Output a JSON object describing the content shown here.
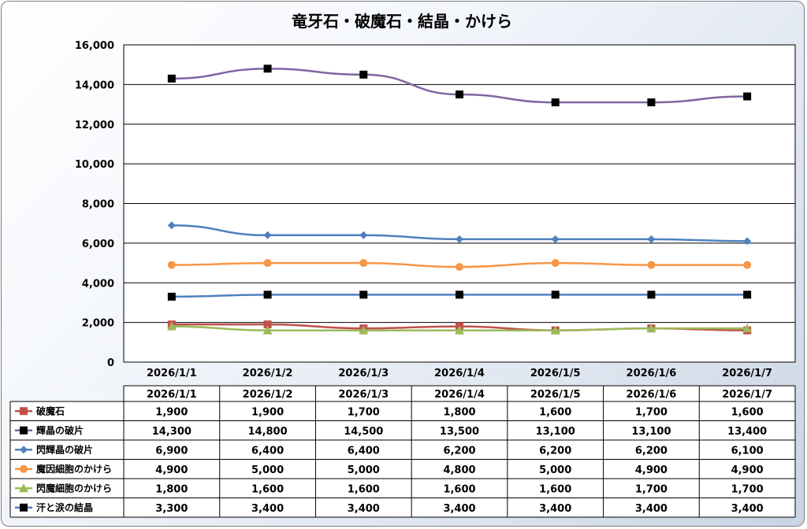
{
  "chart_data": {
    "type": "line",
    "title": "竜牙石・破魔石・結晶・かけら",
    "categories": [
      "2026/1/1",
      "2026/1/2",
      "2026/1/3",
      "2026/1/4",
      "2026/1/5",
      "2026/1/6",
      "2026/1/7"
    ],
    "ylim": [
      0,
      16000
    ],
    "yticks": [
      "0",
      "2,000",
      "4,000",
      "6,000",
      "8,000",
      "10,000",
      "12,000",
      "14,000",
      "16,000"
    ],
    "grid": true,
    "legend": "data-table",
    "series": [
      {
        "name": "破魔石",
        "color": "#c0504d",
        "marker": "square",
        "values": [
          1900,
          1900,
          1700,
          1800,
          1600,
          1700,
          1600
        ],
        "labels": [
          "1,900",
          "1,900",
          "1,700",
          "1,800",
          "1,600",
          "1,700",
          "1,600"
        ]
      },
      {
        "name": "輝晶の破片",
        "color": "#8064a2",
        "marker": "square-black",
        "values": [
          14300,
          14800,
          14500,
          13500,
          13100,
          13100,
          13400
        ],
        "labels": [
          "14,300",
          "14,800",
          "14,500",
          "13,500",
          "13,100",
          "13,100",
          "13,400"
        ]
      },
      {
        "name": "閃輝晶の破片",
        "color": "#4f81bd",
        "marker": "diamond",
        "values": [
          6900,
          6400,
          6400,
          6200,
          6200,
          6200,
          6100
        ],
        "labels": [
          "6,900",
          "6,400",
          "6,400",
          "6,200",
          "6,200",
          "6,200",
          "6,100"
        ]
      },
      {
        "name": "魔因細胞のかけら",
        "color": "#f79646",
        "marker": "circle",
        "values": [
          4900,
          5000,
          5000,
          4800,
          5000,
          4900,
          4900
        ],
        "labels": [
          "4,900",
          "5,000",
          "5,000",
          "4,800",
          "5,000",
          "4,900",
          "4,900"
        ]
      },
      {
        "name": "閃魔細胞のかけら",
        "color": "#9bbb59",
        "marker": "triangle",
        "values": [
          1800,
          1600,
          1600,
          1600,
          1600,
          1700,
          1700
        ],
        "labels": [
          "1,800",
          "1,600",
          "1,600",
          "1,600",
          "1,600",
          "1,700",
          "1,700"
        ]
      },
      {
        "name": "汗と涙の結晶",
        "color": "#4f81bd",
        "marker": "square-black",
        "values": [
          3300,
          3400,
          3400,
          3400,
          3400,
          3400,
          3400
        ],
        "labels": [
          "3,300",
          "3,400",
          "3,400",
          "3,400",
          "3,400",
          "3,400",
          "3,400"
        ]
      }
    ]
  }
}
